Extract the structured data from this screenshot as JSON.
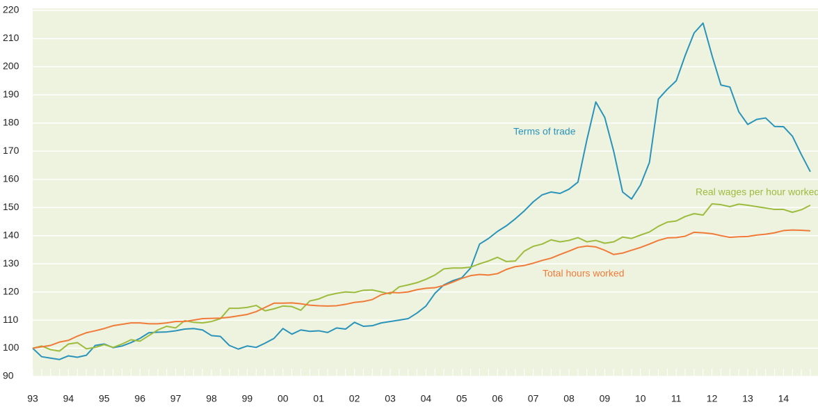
{
  "chart_data": {
    "type": "line",
    "categories": [
      "93",
      null,
      null,
      null,
      "94",
      null,
      null,
      null,
      "95",
      null,
      null,
      null,
      "96",
      null,
      null,
      null,
      "97",
      null,
      null,
      null,
      "98",
      null,
      null,
      null,
      "99",
      null,
      null,
      null,
      "00",
      null,
      null,
      null,
      "01",
      null,
      null,
      null,
      "02",
      null,
      null,
      null,
      "03",
      null,
      null,
      null,
      "04",
      null,
      null,
      null,
      "05",
      null,
      null,
      null,
      "06",
      null,
      null,
      null,
      "07",
      null,
      null,
      null,
      "08",
      null,
      null,
      null,
      "09",
      null,
      null,
      null,
      "10",
      null,
      null,
      null,
      "11",
      null,
      null,
      null,
      "12",
      null,
      null,
      null,
      "13",
      null,
      null,
      null,
      "14",
      null,
      null,
      null
    ],
    "series": [
      {
        "name": "Terms of trade",
        "color": "#2a93b9",
        "values": [
          100,
          97,
          96.5,
          96,
          97.3,
          96.8,
          97.5,
          101,
          101.5,
          100.2,
          100.8,
          102,
          103.5,
          105.5,
          105.7,
          105.8,
          106.2,
          106.8,
          107,
          106.5,
          104.5,
          104.2,
          101,
          99.7,
          100.8,
          100.3,
          101.8,
          103.5,
          107,
          105,
          106.5,
          106,
          106.2,
          105.6,
          107.2,
          106.8,
          109.2,
          107.8,
          108,
          109,
          109.5,
          110,
          110.5,
          112.5,
          115,
          119.5,
          122.5,
          124,
          125,
          128.5,
          137,
          139,
          141.5,
          143.5,
          146,
          148.8,
          152,
          154.5,
          155.5,
          155,
          156.5,
          159,
          174,
          187.5,
          182,
          170,
          155.5,
          153,
          158,
          166,
          188.5,
          192,
          195,
          204,
          212,
          215.5,
          204,
          193.5,
          192.8,
          184,
          179.5,
          181.3,
          181.8,
          178.8,
          178.7,
          175.3,
          168.8,
          162.7
        ]
      },
      {
        "name": "Real wages per hour worked",
        "color": "#9dbb3c",
        "values": [
          100,
          100.8,
          99.5,
          99,
          101.5,
          102,
          99.8,
          100.3,
          101.3,
          100.3,
          101.5,
          103,
          102.5,
          104.5,
          106.5,
          107.8,
          107.2,
          109.8,
          109.2,
          109,
          109.5,
          110.5,
          114.2,
          114.2,
          114.5,
          115.2,
          113.3,
          114,
          115,
          114.8,
          113.5,
          116.8,
          117.5,
          118.8,
          119.5,
          120,
          119.8,
          120.6,
          120.7,
          120,
          119.3,
          121.8,
          122.5,
          123.3,
          124.5,
          126,
          128.2,
          128.5,
          128.5,
          128.8,
          130,
          131,
          132.3,
          130.8,
          131,
          134.5,
          136.2,
          137,
          138.5,
          137.8,
          138.3,
          139.3,
          137.8,
          138.3,
          137.3,
          137.8,
          139.5,
          139,
          140.2,
          141.3,
          143.3,
          144.8,
          145.2,
          146.8,
          147.8,
          147.3,
          151.3,
          151,
          150.3,
          151.2,
          150.8,
          150.3,
          149.8,
          149.3,
          149.3,
          148.3,
          149.2,
          150.8
        ]
      },
      {
        "name": "Total hours worked",
        "color": "#f07a38",
        "values": [
          100,
          100.5,
          101,
          102.2,
          102.8,
          104.3,
          105.5,
          106.2,
          107,
          108,
          108.5,
          109,
          109,
          108.7,
          108.7,
          109,
          109.5,
          109.5,
          110,
          110.5,
          110.6,
          110.7,
          111,
          111.5,
          112,
          113,
          114.5,
          116,
          116,
          116.1,
          115.8,
          115.3,
          115.1,
          115,
          115.1,
          115.6,
          116.3,
          116.6,
          117.3,
          119,
          119.8,
          119.7,
          120,
          120.8,
          121.3,
          121.5,
          122.3,
          123.5,
          124.8,
          125.8,
          126.2,
          126,
          126.5,
          128,
          129,
          129.4,
          130.2,
          131.2,
          132,
          133.3,
          134.5,
          135.8,
          136.3,
          136,
          134.8,
          133.3,
          133.8,
          134.8,
          135.8,
          137,
          138.3,
          139.2,
          139.3,
          139.8,
          141.2,
          141,
          140.7,
          140,
          139.4,
          139.6,
          139.7,
          140.2,
          140.5,
          141,
          141.8,
          142,
          141.9,
          141.7
        ]
      }
    ],
    "ylim": [
      90,
      220
    ],
    "yticks": [
      90,
      100,
      110,
      120,
      130,
      140,
      150,
      160,
      170,
      180,
      190,
      200,
      210,
      220
    ],
    "grid": true
  }
}
